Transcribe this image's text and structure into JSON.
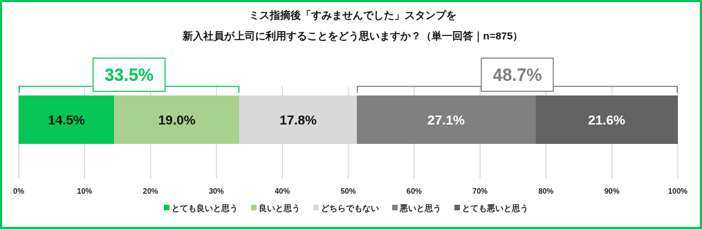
{
  "chart_data": {
    "type": "bar",
    "orientation": "horizontal",
    "stacked": true,
    "title": "ミス指摘後「すみませんでした」スタンプを",
    "subtitle": "新入社員が上司に利用することをどう思いますか？（単一回答｜n=875）",
    "categories": [
      null
    ],
    "series": [
      {
        "name": "とても良いと思う",
        "color": "#06c755",
        "values": [
          14.5
        ],
        "value_labels": [
          "14.5%"
        ]
      },
      {
        "name": "良いと思う",
        "color": "#a9d18e",
        "values": [
          19.0
        ],
        "value_labels": [
          "19.0%"
        ]
      },
      {
        "name": "どちらでもない",
        "color": "#d9d9d9",
        "values": [
          17.8
        ],
        "value_labels": [
          "17.8%"
        ]
      },
      {
        "name": "悪いと思う",
        "color": "#808080",
        "values": [
          27.1
        ],
        "value_labels": [
          "27.1%"
        ]
      },
      {
        "name": "とても悪いと思う",
        "color": "#636363",
        "values": [
          21.6
        ],
        "value_labels": [
          "21.6%"
        ]
      }
    ],
    "xlim": [
      0,
      100
    ],
    "xticks": [
      {
        "value": 0,
        "label": "0%"
      },
      {
        "value": 10,
        "label": "10%"
      },
      {
        "value": 20,
        "label": "20%"
      },
      {
        "value": 30,
        "label": "30%"
      },
      {
        "value": 40,
        "label": "40%"
      },
      {
        "value": 50,
        "label": "50%"
      },
      {
        "value": 60,
        "label": "60%"
      },
      {
        "value": 70,
        "label": "70%"
      },
      {
        "value": 80,
        "label": "80%"
      },
      {
        "value": 90,
        "label": "90%"
      },
      {
        "value": 100,
        "label": "100%"
      }
    ],
    "annotations": [
      "33.5%",
      "48.7%"
    ],
    "grid": "x",
    "legend": "bottom"
  }
}
